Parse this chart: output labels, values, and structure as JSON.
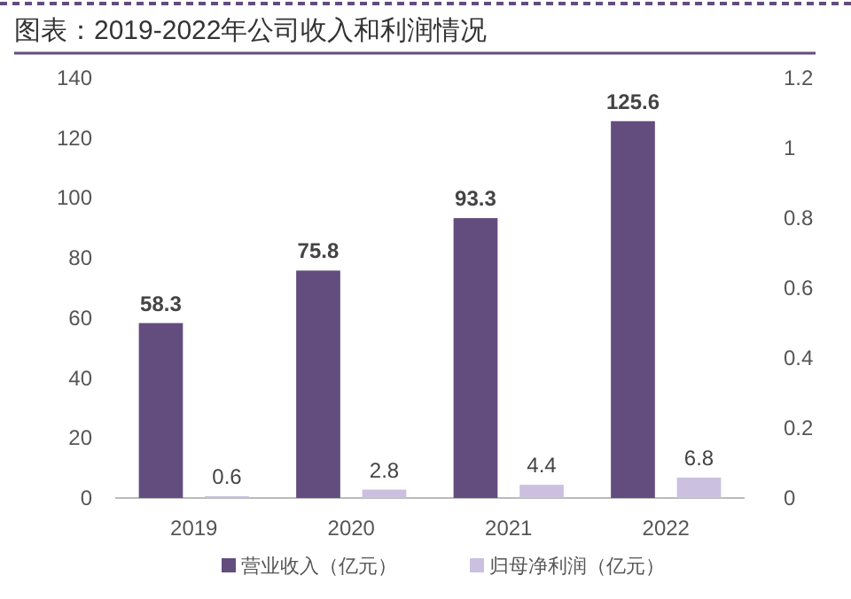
{
  "chart_data": {
    "type": "bar",
    "title": "图表：2019-2022年公司收入和利润情况",
    "categories": [
      "2019",
      "2020",
      "2021",
      "2022"
    ],
    "series": [
      {
        "name": "营业收入（亿元）",
        "color": "#634c7e",
        "values": [
          58.3,
          75.8,
          93.3,
          125.6
        ]
      },
      {
        "name": "归母净利润（亿元）",
        "color": "#cbc0df",
        "values": [
          0.6,
          2.8,
          4.4,
          6.8
        ]
      }
    ],
    "ylim": [
      0,
      140
    ],
    "yticks": [
      0,
      20,
      40,
      60,
      80,
      100,
      120,
      140
    ],
    "y2lim": [
      0,
      1.2
    ],
    "y2ticks": [
      0,
      0.2,
      0.4,
      0.6,
      0.8,
      1,
      1.2
    ],
    "data_labels": true,
    "grid": false,
    "legend": "bottom"
  }
}
